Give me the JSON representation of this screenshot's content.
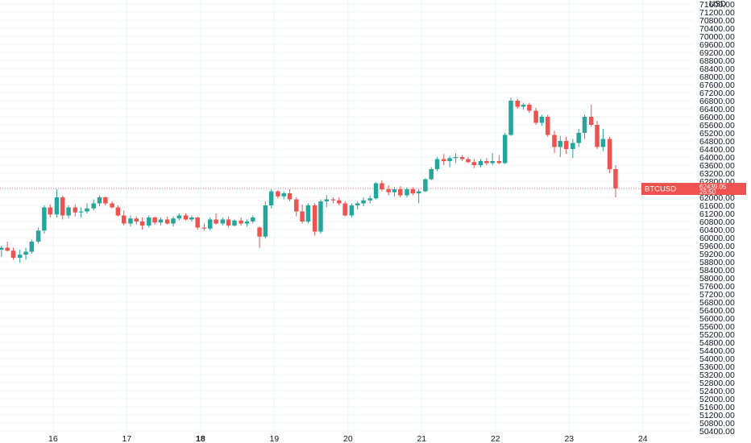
{
  "chart_data": {
    "type": "candlestick",
    "symbol": "BTCUSD",
    "currency": "USD",
    "last_price": "62439.05",
    "countdown": "26:50",
    "y_axis": {
      "min": 50400,
      "max": 71600,
      "tick_step": 400,
      "tick_labels": [
        "71600.00",
        "71200.00",
        "70800.00",
        "70400.00",
        "70000.00",
        "69600.00",
        "69200.00",
        "68800.00",
        "68400.00",
        "68000.00",
        "67600.00",
        "67200.00",
        "66800.00",
        "66400.00",
        "66000.00",
        "65600.00",
        "65200.00",
        "64800.00",
        "64400.00",
        "64000.00",
        "63600.00",
        "63200.00",
        "62800.00",
        "62400.00",
        "62000.00",
        "61600.00",
        "61200.00",
        "60800.00",
        "60400.00",
        "60000.00",
        "59600.00",
        "59200.00",
        "58800.00",
        "58400.00",
        "58000.00",
        "57600.00",
        "57200.00",
        "56800.00",
        "56400.00",
        "56000.00",
        "55600.00",
        "55200.00",
        "54800.00",
        "54400.00",
        "54000.00",
        "53600.00",
        "53200.00",
        "52800.00",
        "52400.00",
        "52000.00",
        "51600.00",
        "51200.00",
        "50800.00",
        "50400.00"
      ]
    },
    "x_axis": {
      "unit": "day",
      "range": [
        15.28,
        24.68
      ],
      "ticks": [
        {
          "value": 16,
          "label": "16",
          "bold": false
        },
        {
          "value": 17,
          "label": "17",
          "bold": false
        },
        {
          "value": 18,
          "label": "18",
          "bold": true
        },
        {
          "value": 19,
          "label": "19",
          "bold": false
        },
        {
          "value": 20,
          "label": "20",
          "bold": false
        },
        {
          "value": 21,
          "label": "21",
          "bold": false
        },
        {
          "value": 22,
          "label": "22",
          "bold": false
        },
        {
          "value": 23,
          "label": "23",
          "bold": false
        },
        {
          "value": 24,
          "label": "24",
          "bold": false
        }
      ]
    },
    "grid": true,
    "colors": {
      "up": "#26a69a",
      "down": "#ef5350",
      "grid": "#f0f3fa",
      "text": "#131722"
    },
    "candle_hours": 2,
    "candles": [
      {
        "t": 15.3,
        "o": 59400,
        "h": 59600,
        "l": 59050,
        "c": 59500
      },
      {
        "t": 15.38,
        "o": 59500,
        "h": 59800,
        "l": 59300,
        "c": 59350
      },
      {
        "t": 15.46,
        "o": 59350,
        "h": 59500,
        "l": 58900,
        "c": 59000
      },
      {
        "t": 15.55,
        "o": 59000,
        "h": 59400,
        "l": 58750,
        "c": 59150
      },
      {
        "t": 15.63,
        "o": 59150,
        "h": 59500,
        "l": 58900,
        "c": 59300
      },
      {
        "t": 15.71,
        "o": 59300,
        "h": 59900,
        "l": 59200,
        "c": 59800
      },
      {
        "t": 15.8,
        "o": 59800,
        "h": 60500,
        "l": 59700,
        "c": 60350
      },
      {
        "t": 15.88,
        "o": 60350,
        "h": 61600,
        "l": 60200,
        "c": 61500
      },
      {
        "t": 15.96,
        "o": 61500,
        "h": 61650,
        "l": 61000,
        "c": 61150
      },
      {
        "t": 16.05,
        "o": 61150,
        "h": 62400,
        "l": 61000,
        "c": 62000
      },
      {
        "t": 16.13,
        "o": 62000,
        "h": 62100,
        "l": 60900,
        "c": 61100
      },
      {
        "t": 16.21,
        "o": 61100,
        "h": 61600,
        "l": 60950,
        "c": 61500
      },
      {
        "t": 16.3,
        "o": 61500,
        "h": 61650,
        "l": 61050,
        "c": 61250
      },
      {
        "t": 16.38,
        "o": 61250,
        "h": 61500,
        "l": 61000,
        "c": 61300
      },
      {
        "t": 16.46,
        "o": 61300,
        "h": 61700,
        "l": 61200,
        "c": 61450
      },
      {
        "t": 16.55,
        "o": 61450,
        "h": 61900,
        "l": 61350,
        "c": 61700
      },
      {
        "t": 16.63,
        "o": 61700,
        "h": 62100,
        "l": 61550,
        "c": 62000
      },
      {
        "t": 16.71,
        "o": 62000,
        "h": 62050,
        "l": 61600,
        "c": 61700
      },
      {
        "t": 16.8,
        "o": 61700,
        "h": 61800,
        "l": 61450,
        "c": 61500
      },
      {
        "t": 16.88,
        "o": 61500,
        "h": 61600,
        "l": 61050,
        "c": 61100
      },
      {
        "t": 16.96,
        "o": 61100,
        "h": 61350,
        "l": 60600,
        "c": 60700
      },
      {
        "t": 17.05,
        "o": 60700,
        "h": 61100,
        "l": 60550,
        "c": 60950
      },
      {
        "t": 17.13,
        "o": 60950,
        "h": 61050,
        "l": 60650,
        "c": 60800
      },
      {
        "t": 17.21,
        "o": 60800,
        "h": 61000,
        "l": 60400,
        "c": 60600
      },
      {
        "t": 17.3,
        "o": 60600,
        "h": 61100,
        "l": 60500,
        "c": 61000
      },
      {
        "t": 17.38,
        "o": 61000,
        "h": 61050,
        "l": 60650,
        "c": 60750
      },
      {
        "t": 17.46,
        "o": 60750,
        "h": 61000,
        "l": 60600,
        "c": 60900
      },
      {
        "t": 17.55,
        "o": 60900,
        "h": 61050,
        "l": 60650,
        "c": 60700
      },
      {
        "t": 17.63,
        "o": 60700,
        "h": 61050,
        "l": 60550,
        "c": 60950
      },
      {
        "t": 17.71,
        "o": 60950,
        "h": 61200,
        "l": 60850,
        "c": 61100
      },
      {
        "t": 17.8,
        "o": 61100,
        "h": 61200,
        "l": 60850,
        "c": 60900
      },
      {
        "t": 17.88,
        "o": 60900,
        "h": 61100,
        "l": 60800,
        "c": 61000
      },
      {
        "t": 17.96,
        "o": 61000,
        "h": 61050,
        "l": 60400,
        "c": 60500
      },
      {
        "t": 18.05,
        "o": 60500,
        "h": 60700,
        "l": 60350,
        "c": 60450
      },
      {
        "t": 18.13,
        "o": 60450,
        "h": 61000,
        "l": 60350,
        "c": 60900
      },
      {
        "t": 18.21,
        "o": 60900,
        "h": 61200,
        "l": 60650,
        "c": 60700
      },
      {
        "t": 18.3,
        "o": 60700,
        "h": 61000,
        "l": 60600,
        "c": 60900
      },
      {
        "t": 18.38,
        "o": 60900,
        "h": 61050,
        "l": 60500,
        "c": 60600
      },
      {
        "t": 18.46,
        "o": 60600,
        "h": 60900,
        "l": 60550,
        "c": 60850
      },
      {
        "t": 18.55,
        "o": 60850,
        "h": 61000,
        "l": 60600,
        "c": 60700
      },
      {
        "t": 18.63,
        "o": 60700,
        "h": 60900,
        "l": 60550,
        "c": 60800
      },
      {
        "t": 18.71,
        "o": 60800,
        "h": 61100,
        "l": 60700,
        "c": 61000
      },
      {
        "t": 18.8,
        "o": 60500,
        "h": 60550,
        "l": 59500,
        "c": 60050
      },
      {
        "t": 18.88,
        "o": 60050,
        "h": 61800,
        "l": 59950,
        "c": 61600
      },
      {
        "t": 18.96,
        "o": 61600,
        "h": 62400,
        "l": 61450,
        "c": 62300
      },
      {
        "t": 19.05,
        "o": 62300,
        "h": 62350,
        "l": 61950,
        "c": 62050
      },
      {
        "t": 19.13,
        "o": 62050,
        "h": 62300,
        "l": 61900,
        "c": 62200
      },
      {
        "t": 19.21,
        "o": 62200,
        "h": 62400,
        "l": 61800,
        "c": 61900
      },
      {
        "t": 19.3,
        "o": 61900,
        "h": 62000,
        "l": 61050,
        "c": 61300
      },
      {
        "t": 19.38,
        "o": 61300,
        "h": 61650,
        "l": 60700,
        "c": 60800
      },
      {
        "t": 19.46,
        "o": 60800,
        "h": 61700,
        "l": 60700,
        "c": 61600
      },
      {
        "t": 19.55,
        "o": 61600,
        "h": 61700,
        "l": 60100,
        "c": 60300
      },
      {
        "t": 19.63,
        "o": 60300,
        "h": 61900,
        "l": 60200,
        "c": 61800
      },
      {
        "t": 19.71,
        "o": 61800,
        "h": 62100,
        "l": 61500,
        "c": 61900
      },
      {
        "t": 19.8,
        "o": 61900,
        "h": 62000,
        "l": 61700,
        "c": 61850
      },
      {
        "t": 19.88,
        "o": 61850,
        "h": 62000,
        "l": 61600,
        "c": 61700
      },
      {
        "t": 19.96,
        "o": 61700,
        "h": 61800,
        "l": 61050,
        "c": 61100
      },
      {
        "t": 20.05,
        "o": 61100,
        "h": 61700,
        "l": 61000,
        "c": 61600
      },
      {
        "t": 20.13,
        "o": 61600,
        "h": 61800,
        "l": 61400,
        "c": 61700
      },
      {
        "t": 20.21,
        "o": 61700,
        "h": 62000,
        "l": 61550,
        "c": 61850
      },
      {
        "t": 20.3,
        "o": 61850,
        "h": 62100,
        "l": 61700,
        "c": 61950
      },
      {
        "t": 20.38,
        "o": 61950,
        "h": 62750,
        "l": 61900,
        "c": 62700
      },
      {
        "t": 20.46,
        "o": 62700,
        "h": 62850,
        "l": 62300,
        "c": 62400
      },
      {
        "t": 20.55,
        "o": 62400,
        "h": 62600,
        "l": 62100,
        "c": 62250
      },
      {
        "t": 20.63,
        "o": 62250,
        "h": 62500,
        "l": 62050,
        "c": 62400
      },
      {
        "t": 20.71,
        "o": 62400,
        "h": 62550,
        "l": 62000,
        "c": 62100
      },
      {
        "t": 20.8,
        "o": 62100,
        "h": 62500,
        "l": 62000,
        "c": 62400
      },
      {
        "t": 20.88,
        "o": 62400,
        "h": 62500,
        "l": 62100,
        "c": 62200
      },
      {
        "t": 20.96,
        "o": 62200,
        "h": 62400,
        "l": 61700,
        "c": 62300
      },
      {
        "t": 21.05,
        "o": 62300,
        "h": 62950,
        "l": 62250,
        "c": 62900
      },
      {
        "t": 21.13,
        "o": 62900,
        "h": 63500,
        "l": 62850,
        "c": 63400
      },
      {
        "t": 21.21,
        "o": 63400,
        "h": 64000,
        "l": 63300,
        "c": 63900
      },
      {
        "t": 21.3,
        "o": 63900,
        "h": 64150,
        "l": 63600,
        "c": 63800
      },
      {
        "t": 21.38,
        "o": 63800,
        "h": 64050,
        "l": 63500,
        "c": 63950
      },
      {
        "t": 21.46,
        "o": 63950,
        "h": 64200,
        "l": 63700,
        "c": 64000
      },
      {
        "t": 21.55,
        "o": 64000,
        "h": 64100,
        "l": 63800,
        "c": 63900
      },
      {
        "t": 21.63,
        "o": 63900,
        "h": 64000,
        "l": 63700,
        "c": 63750
      },
      {
        "t": 21.71,
        "o": 63750,
        "h": 63900,
        "l": 63450,
        "c": 63600
      },
      {
        "t": 21.8,
        "o": 63600,
        "h": 63900,
        "l": 63500,
        "c": 63800
      },
      {
        "t": 21.88,
        "o": 63800,
        "h": 63950,
        "l": 63600,
        "c": 63700
      },
      {
        "t": 21.96,
        "o": 63700,
        "h": 64200,
        "l": 63600,
        "c": 63800
      },
      {
        "t": 22.05,
        "o": 63800,
        "h": 64100,
        "l": 63650,
        "c": 63700
      },
      {
        "t": 22.13,
        "o": 63700,
        "h": 65200,
        "l": 63650,
        "c": 65100
      },
      {
        "t": 22.21,
        "o": 65100,
        "h": 66950,
        "l": 65050,
        "c": 66800
      },
      {
        "t": 22.3,
        "o": 66800,
        "h": 66900,
        "l": 66400,
        "c": 66500
      },
      {
        "t": 22.38,
        "o": 66500,
        "h": 66700,
        "l": 66350,
        "c": 66600
      },
      {
        "t": 22.46,
        "o": 66600,
        "h": 66700,
        "l": 66200,
        "c": 66300
      },
      {
        "t": 22.55,
        "o": 66300,
        "h": 66450,
        "l": 65600,
        "c": 65700
      },
      {
        "t": 22.63,
        "o": 65700,
        "h": 66100,
        "l": 65550,
        "c": 66000
      },
      {
        "t": 22.71,
        "o": 66000,
        "h": 66100,
        "l": 65000,
        "c": 65100
      },
      {
        "t": 22.8,
        "o": 65100,
        "h": 65300,
        "l": 64200,
        "c": 64500
      },
      {
        "t": 22.88,
        "o": 64500,
        "h": 65050,
        "l": 64000,
        "c": 64800
      },
      {
        "t": 22.96,
        "o": 64800,
        "h": 65000,
        "l": 64150,
        "c": 64400
      },
      {
        "t": 23.05,
        "o": 64400,
        "h": 64900,
        "l": 63950,
        "c": 64700
      },
      {
        "t": 23.13,
        "o": 64700,
        "h": 65400,
        "l": 64500,
        "c": 65200
      },
      {
        "t": 23.21,
        "o": 65200,
        "h": 66100,
        "l": 64900,
        "c": 66000
      },
      {
        "t": 23.3,
        "o": 66000,
        "h": 66600,
        "l": 65500,
        "c": 65600
      },
      {
        "t": 23.38,
        "o": 65600,
        "h": 65800,
        "l": 64400,
        "c": 64500
      },
      {
        "t": 23.46,
        "o": 64500,
        "h": 65400,
        "l": 64300,
        "c": 64900
      },
      {
        "t": 23.55,
        "o": 64900,
        "h": 65000,
        "l": 63200,
        "c": 63400
      },
      {
        "t": 23.63,
        "o": 63400,
        "h": 63600,
        "l": 62000,
        "c": 62450
      }
    ]
  }
}
